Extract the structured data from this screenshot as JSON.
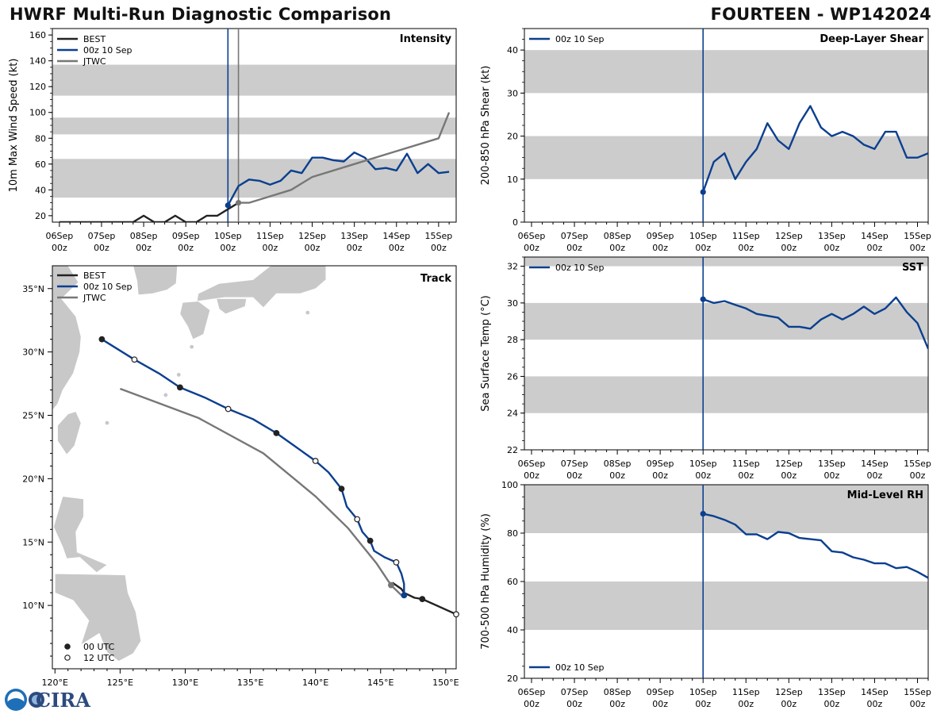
{
  "title_left": "HWRF Multi-Run Diagnostic Comparison",
  "title_right": "FOURTEEN - WP142024",
  "colors": {
    "best": "#222222",
    "run": "#0b3f8f",
    "jtwc": "#777777",
    "band": "#cccccc",
    "land": "#c8c8c8"
  },
  "time_ticks": {
    "days": [
      "06Sep",
      "07Sep",
      "08Sep",
      "09Sep",
      "10Sep",
      "11Sep",
      "12Sep",
      "13Sep",
      "14Sep",
      "15Sep"
    ],
    "hour": "00z"
  },
  "logo_text": "CIRA",
  "chart_data": [
    {
      "id": "intensity",
      "type": "line",
      "label": "Intensity",
      "ylabel": "10m Max Wind Speed (kt)",
      "xlim_hours": [
        -100,
        130
      ],
      "ylim": [
        15,
        165
      ],
      "yticks": [
        20,
        40,
        60,
        80,
        100,
        120,
        140,
        160
      ],
      "bands": [
        [
          34,
          64
        ],
        [
          83,
          96
        ],
        [
          113,
          137
        ]
      ],
      "legend": [
        "BEST",
        "00z 10 Sep",
        "JTWC"
      ],
      "init_hour": 0,
      "jtwc_init_hour": 6,
      "series": [
        {
          "name": "BEST",
          "color_key": "best",
          "x": [
            -96,
            -84,
            -72,
            -60,
            -54,
            -48,
            -42,
            -36,
            -30,
            -24,
            -18,
            -12,
            -6,
            0,
            6
          ],
          "y": [
            15,
            15,
            15,
            15,
            15,
            20,
            15,
            15,
            20,
            15,
            15,
            20,
            20,
            25,
            30
          ]
        },
        {
          "name": "00z 10 Sep",
          "color_key": "run",
          "marker_first": true,
          "x": [
            0,
            6,
            12,
            18,
            24,
            30,
            36,
            42,
            48,
            54,
            60,
            66,
            72,
            78,
            84,
            90,
            96,
            102,
            108,
            114,
            120,
            126
          ],
          "y": [
            28,
            43,
            48,
            47,
            44,
            47,
            55,
            53,
            65,
            65,
            63,
            62,
            69,
            65,
            56,
            57,
            55,
            68,
            53,
            60,
            53,
            54
          ]
        },
        {
          "name": "JTWC",
          "color_key": "jtwc",
          "marker_first": true,
          "x": [
            6,
            12,
            24,
            36,
            48,
            72,
            96,
            120,
            126
          ],
          "y": [
            30,
            30,
            35,
            40,
            50,
            60,
            70,
            80,
            100
          ]
        }
      ]
    },
    {
      "id": "shear",
      "type": "line",
      "label": "Deep-Layer Shear",
      "ylabel": "200-850 hPa Shear (kt)",
      "xlim_hours": [
        -100,
        126
      ],
      "ylim": [
        0,
        45
      ],
      "yticks": [
        0,
        10,
        20,
        30,
        40
      ],
      "bands": [
        [
          10,
          20
        ],
        [
          30,
          40
        ]
      ],
      "legend": [
        "00z 10 Sep"
      ],
      "init_hour": 0,
      "series": [
        {
          "name": "00z 10 Sep",
          "color_key": "run",
          "marker_first": true,
          "x": [
            0,
            6,
            12,
            18,
            24,
            30,
            36,
            42,
            48,
            54,
            60,
            66,
            72,
            78,
            84,
            90,
            96,
            102,
            108,
            114,
            120,
            126
          ],
          "y": [
            7,
            14,
            16,
            10,
            14,
            17,
            23,
            19,
            17,
            23,
            27,
            22,
            20,
            21,
            20,
            18,
            17,
            21,
            21,
            15,
            15,
            16
          ]
        }
      ]
    },
    {
      "id": "sst",
      "type": "line",
      "label": "SST",
      "ylabel": "Sea Surface Temp (°C)",
      "xlim_hours": [
        -100,
        126
      ],
      "ylim": [
        22,
        32.5
      ],
      "yticks": [
        22,
        24,
        26,
        28,
        30,
        32
      ],
      "bands": [
        [
          24,
          26
        ],
        [
          28,
          30
        ],
        [
          32,
          32.5
        ]
      ],
      "legend": [
        "00z 10 Sep"
      ],
      "init_hour": 0,
      "series": [
        {
          "name": "00z 10 Sep",
          "color_key": "run",
          "marker_first": true,
          "x": [
            0,
            6,
            12,
            18,
            24,
            30,
            36,
            42,
            48,
            54,
            60,
            66,
            72,
            78,
            84,
            90,
            96,
            102,
            108,
            114,
            120,
            126
          ],
          "y": [
            30.2,
            30.0,
            30.1,
            29.9,
            29.7,
            29.4,
            29.3,
            29.2,
            28.7,
            28.7,
            28.6,
            29.1,
            29.4,
            29.1,
            29.4,
            29.8,
            29.4,
            29.7,
            30.3,
            29.5,
            28.9,
            27.5
          ]
        }
      ]
    },
    {
      "id": "rh",
      "type": "line",
      "label": "Mid-Level RH",
      "ylabel": "700-500 hPa Humidity (%)",
      "xlim_hours": [
        -100,
        126
      ],
      "ylim": [
        20,
        100
      ],
      "yticks": [
        20,
        40,
        60,
        80,
        100
      ],
      "bands": [
        [
          40,
          60
        ],
        [
          80,
          100
        ]
      ],
      "legend": [
        "00z 10 Sep"
      ],
      "init_hour": 0,
      "series": [
        {
          "name": "00z 10 Sep",
          "color_key": "run",
          "marker_first": true,
          "x": [
            0,
            6,
            12,
            18,
            24,
            30,
            36,
            42,
            48,
            54,
            60,
            66,
            72,
            78,
            84,
            90,
            96,
            102,
            108,
            114,
            120,
            126
          ],
          "y": [
            88,
            87,
            85.5,
            83.5,
            79.5,
            79.5,
            77.5,
            80.5,
            80,
            78,
            77.5,
            77,
            72.5,
            72,
            70,
            69,
            67.5,
            67.5,
            65.5,
            66,
            64,
            61.5
          ]
        }
      ]
    },
    {
      "id": "track",
      "type": "map",
      "label": "Track",
      "xlim_lon": [
        119.8,
        150.8
      ],
      "ylim_lat": [
        5,
        36.8
      ],
      "lon_ticks": [
        120,
        125,
        130,
        135,
        140,
        145,
        150
      ],
      "lon_tick_labels": [
        "120°E",
        "125°E",
        "130°E",
        "135°E",
        "140°E",
        "145°E",
        "150°E"
      ],
      "lat_ticks": [
        10,
        15,
        20,
        25,
        30,
        35
      ],
      "lat_tick_labels": [
        "10°N",
        "15°N",
        "20°N",
        "25°N",
        "30°N",
        "35°N"
      ],
      "legend": [
        "BEST",
        "00z 10 Sep",
        "JTWC"
      ],
      "marker_legend": [
        "00 UTC",
        "12 UTC"
      ],
      "series": [
        {
          "name": "BEST",
          "color_key": "best",
          "points": [
            [
              150.8,
              9.3
            ],
            [
              148.2,
              10.5
            ],
            [
              147.6,
              10.6
            ],
            [
              146.8,
              11.0
            ],
            [
              146.6,
              11.3
            ],
            [
              145.9,
              11.8
            ]
          ],
          "markers": [
            {
              "lon": 148.2,
              "lat": 10.5,
              "kind": "00"
            },
            {
              "lon": 150.8,
              "lat": 9.3,
              "kind": "12"
            }
          ]
        },
        {
          "name": "00z 10 Sep",
          "color_key": "run",
          "points": [
            [
              146.8,
              10.8
            ],
            [
              146.8,
              11.7
            ],
            [
              146.6,
              12.5
            ],
            [
              146.2,
              13.4
            ],
            [
              145.3,
              13.8
            ],
            [
              144.5,
              14.3
            ],
            [
              144.2,
              15.1
            ],
            [
              143.6,
              15.8
            ],
            [
              143.2,
              16.8
            ],
            [
              142.4,
              17.8
            ],
            [
              142.0,
              19.2
            ],
            [
              141.0,
              20.5
            ],
            [
              140.0,
              21.4
            ],
            [
              138.5,
              22.5
            ],
            [
              137.0,
              23.6
            ],
            [
              135.2,
              24.7
            ],
            [
              133.3,
              25.5
            ],
            [
              131.5,
              26.4
            ],
            [
              129.6,
              27.2
            ],
            [
              128.0,
              28.3
            ],
            [
              126.1,
              29.4
            ],
            [
              123.6,
              31.0
            ]
          ],
          "markers": [
            {
              "lon": 146.8,
              "lat": 10.8,
              "kind": "init"
            },
            {
              "lon": 146.2,
              "lat": 13.4,
              "kind": "12"
            },
            {
              "lon": 144.2,
              "lat": 15.1,
              "kind": "00"
            },
            {
              "lon": 143.2,
              "lat": 16.8,
              "kind": "12"
            },
            {
              "lon": 142.0,
              "lat": 19.2,
              "kind": "00"
            },
            {
              "lon": 140.0,
              "lat": 21.4,
              "kind": "12"
            },
            {
              "lon": 137.0,
              "lat": 23.6,
              "kind": "00"
            },
            {
              "lon": 133.3,
              "lat": 25.5,
              "kind": "12"
            },
            {
              "lon": 129.6,
              "lat": 27.2,
              "kind": "00"
            },
            {
              "lon": 126.1,
              "lat": 29.4,
              "kind": "12"
            },
            {
              "lon": 123.6,
              "lat": 31.0,
              "kind": "00"
            }
          ]
        },
        {
          "name": "JTWC",
          "color_key": "jtwc",
          "points": [
            [
              146.6,
              10.8
            ],
            [
              145.8,
              11.6
            ],
            [
              144.7,
              13.3
            ],
            [
              142.5,
              16.1
            ],
            [
              140.0,
              18.6
            ],
            [
              136.0,
              22.0
            ],
            [
              131.0,
              24.8
            ],
            [
              125.0,
              27.1
            ]
          ],
          "markers": [
            {
              "lon": 145.8,
              "lat": 11.6,
              "kind": "init"
            }
          ]
        }
      ]
    }
  ]
}
